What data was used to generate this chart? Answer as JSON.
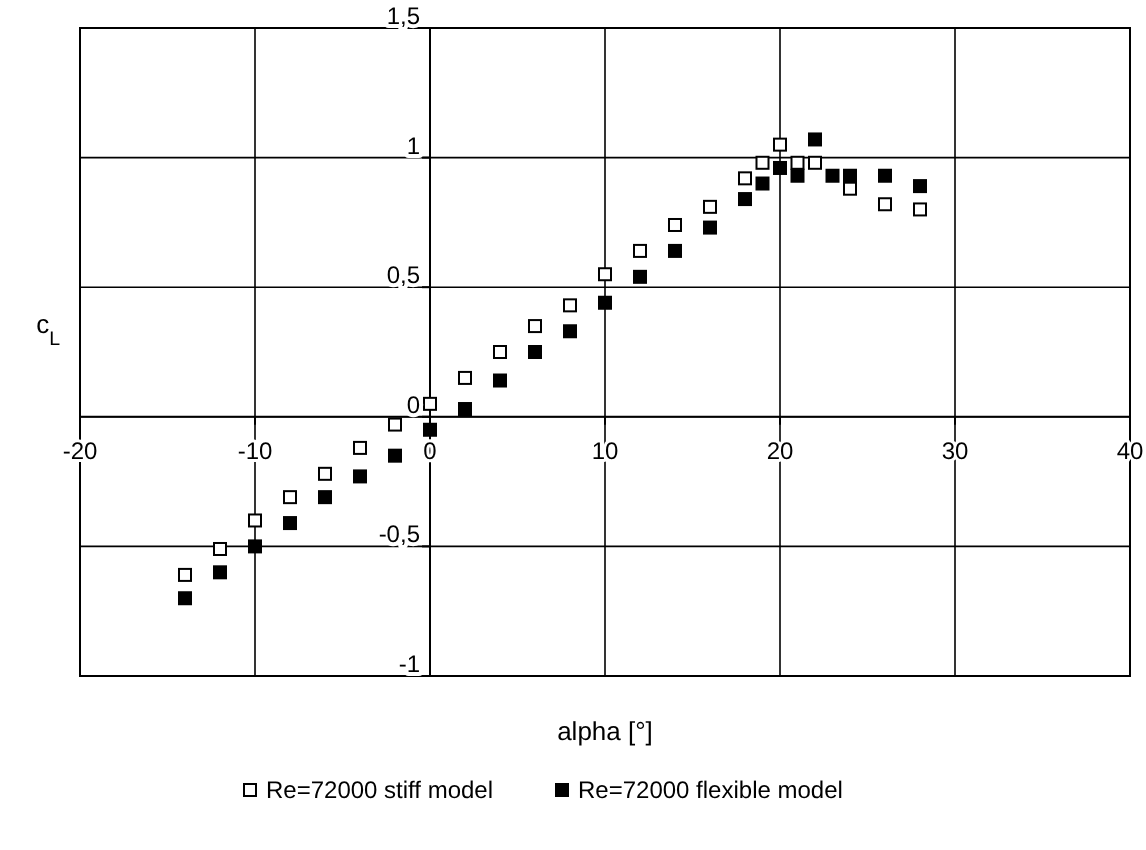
{
  "chart_data": {
    "type": "scatter",
    "xlabel": "alpha [°]",
    "ylabel": "c$_{L}$",
    "xlim": [
      -20,
      40
    ],
    "xticks": [
      -20,
      -10,
      0,
      10,
      20,
      30,
      40
    ],
    "ylim": [
      -1,
      1.5
    ],
    "yticks": [
      {
        "value": -1,
        "label": "-1"
      },
      {
        "value": -0.5,
        "label": "-0,5"
      },
      {
        "value": 0,
        "label": "0"
      },
      {
        "value": 0.5,
        "label": "0,5"
      },
      {
        "value": 1,
        "label": "1"
      },
      {
        "value": 1.5,
        "label": "1,5"
      }
    ],
    "grid": true,
    "legend": "bottom",
    "marker": "square",
    "series": [
      {
        "name": "Re=72000 stiff model",
        "color": "#ffffff",
        "x": [
          -14,
          -12,
          -10,
          -8,
          -6,
          -4,
          -2,
          0,
          2,
          4,
          6,
          8,
          10,
          12,
          14,
          16,
          18,
          19,
          20,
          21,
          22,
          24,
          26,
          28
        ],
        "values": [
          -0.61,
          -0.51,
          -0.4,
          -0.31,
          -0.22,
          -0.12,
          -0.03,
          0.05,
          0.15,
          0.25,
          0.35,
          0.43,
          0.55,
          0.64,
          0.74,
          0.81,
          0.92,
          0.98,
          1.05,
          0.98,
          0.98,
          0.88,
          0.82,
          0.8
        ]
      },
      {
        "name": "Re=72000 flexible model",
        "color": "#000000",
        "x": [
          -14,
          -12,
          -10,
          -8,
          -6,
          -4,
          -2,
          0,
          2,
          4,
          6,
          8,
          10,
          12,
          14,
          16,
          18,
          19,
          20,
          21,
          22,
          23,
          24,
          26,
          28
        ],
        "values": [
          -0.7,
          -0.6,
          -0.5,
          -0.41,
          -0.31,
          -0.23,
          -0.15,
          -0.05,
          0.03,
          0.14,
          0.25,
          0.33,
          0.44,
          0.54,
          0.64,
          0.73,
          0.84,
          0.9,
          0.96,
          0.93,
          1.07,
          0.93,
          0.93,
          0.93,
          0.89
        ]
      }
    ]
  }
}
